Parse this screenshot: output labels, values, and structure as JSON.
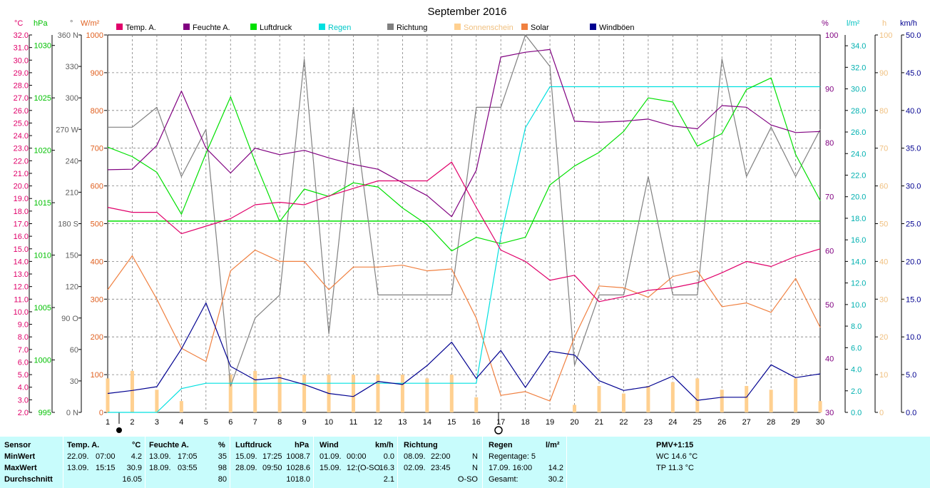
{
  "chart_data": {
    "type": "line",
    "title": "September 2016",
    "x": [
      1,
      2,
      3,
      4,
      5,
      6,
      7,
      8,
      9,
      10,
      11,
      12,
      13,
      14,
      15,
      16,
      17,
      18,
      19,
      20,
      21,
      22,
      23,
      24,
      25,
      26,
      27,
      28,
      29,
      30
    ],
    "legend": [
      {
        "name": "Temp. A.",
        "color": "#e0006a"
      },
      {
        "name": "Feuchte A.",
        "color": "#800080"
      },
      {
        "name": "Luftdruck",
        "color": "#00e000"
      },
      {
        "name": "Regen",
        "color": "#00e0e0"
      },
      {
        "name": "Richtung",
        "color": "#808080"
      },
      {
        "name": "Sonnenschein",
        "color": "#ffd090"
      },
      {
        "name": "Solar",
        "color": "#f08040"
      },
      {
        "name": "Windböen",
        "color": "#000090"
      }
    ],
    "axes": {
      "temp": {
        "unit": "°C",
        "min": 2,
        "max": 32,
        "step": 1,
        "decimals": 1,
        "color": "#e0006a"
      },
      "pressure": {
        "unit": "hPa",
        "min": 995,
        "max": 1031,
        "ticks": [
          995,
          1000,
          1005,
          1010,
          1015,
          1020,
          1025,
          1030
        ],
        "color": "#00c000"
      },
      "direction": {
        "unit": "°",
        "min": 0,
        "max": 360,
        "ticks": [
          0,
          30,
          60,
          90,
          120,
          150,
          180,
          210,
          240,
          270,
          300,
          330,
          360
        ],
        "tick_labels": [
          "0 N",
          "30",
          "60",
          "90 O",
          "120",
          "150",
          "180 S",
          "210",
          "240",
          "270 W",
          "300",
          "330",
          "360 N"
        ],
        "color": "#606060"
      },
      "solar": {
        "unit": "W/m²",
        "min": 0,
        "max": 1000,
        "step": 100,
        "color": "#e06020"
      },
      "humidity": {
        "unit": "%",
        "min": 30,
        "max": 100,
        "ticks": [
          30,
          40,
          50,
          60,
          70,
          80,
          90,
          100
        ],
        "color": "#800080"
      },
      "rain": {
        "unit": "l/m²",
        "min": 0,
        "max": 35,
        "step": 2,
        "decimals": 1,
        "color": "#00c0c0"
      },
      "sunshine": {
        "unit": "h",
        "min": 0,
        "max": 100,
        "step": 10,
        "color": "#f0c080"
      },
      "wind": {
        "unit": "km/h",
        "min": 0,
        "max": 50,
        "step": 5,
        "decimals": 1,
        "color": "#000090"
      }
    },
    "series": [
      {
        "name": "Temp. A.",
        "axis": "temp",
        "values": [
          18.3,
          17.9,
          17.9,
          16.2,
          16.8,
          17.4,
          18.5,
          18.7,
          18.5,
          19.2,
          19.8,
          20.4,
          20.4,
          20.4,
          21.9,
          18.3,
          14.9,
          14.0,
          12.5,
          12.9,
          10.8,
          11.2,
          11.7,
          11.9,
          12.3,
          13.1,
          14.0,
          13.6,
          14.4,
          15.0
        ]
      },
      {
        "name": "Feuchte A.",
        "axis": "humidity",
        "values": [
          75,
          75.1,
          79.5,
          89.6,
          79,
          74.4,
          79,
          77.8,
          78.6,
          77.2,
          76,
          75.1,
          72.6,
          70.2,
          66.3,
          74.9,
          95.9,
          96.8,
          97.3,
          84,
          83.8,
          84,
          84.4,
          83.1,
          82.6,
          86.9,
          86.6,
          83.3,
          81.9,
          82.1
        ]
      },
      {
        "name": "Luftdruck",
        "axis": "pressure",
        "values": [
          1020.3,
          1019.4,
          1017.9,
          1013.9,
          1019.7,
          1025.1,
          1018.9,
          1013.2,
          1016.3,
          1015.6,
          1016.9,
          1016.5,
          1014.5,
          1012.9,
          1010.4,
          1011.7,
          1011.1,
          1011.7,
          1016.7,
          1018.5,
          1019.8,
          1021.8,
          1025.0,
          1024.6,
          1020.4,
          1021.6,
          1025.8,
          1026.9,
          1019.6,
          1015.2
        ]
      },
      {
        "name": "Regen",
        "axis": "rain",
        "values": [
          0,
          0,
          0,
          2.2,
          2.7,
          2.7,
          2.7,
          2.7,
          2.7,
          2.7,
          2.7,
          2.7,
          2.7,
          2.7,
          2.7,
          2.7,
          16.3,
          26.4,
          30.2,
          30.2,
          30.2,
          30.2,
          30.2,
          30.2,
          30.2,
          30.2,
          30.2,
          30.2,
          30.2,
          30.2
        ]
      },
      {
        "name": "Richtung",
        "axis": "direction",
        "values": [
          272,
          272,
          291,
          225,
          270,
          25,
          90,
          112,
          337,
          75,
          291,
          112,
          112,
          112,
          112,
          291,
          291,
          360,
          330,
          45,
          112,
          112,
          225,
          112,
          112,
          337,
          225,
          272,
          225,
          270
        ]
      },
      {
        "name": "Solar",
        "axis": "solar",
        "values": [
          325,
          415,
          300,
          170,
          135,
          375,
          430,
          400,
          400,
          325,
          385,
          385,
          390,
          375,
          380,
          250,
          45,
          55,
          30,
          200,
          335,
          330,
          305,
          360,
          375,
          280,
          290,
          265,
          355,
          225
        ]
      },
      {
        "name": "Windböen",
        "axis": "wind",
        "values": [
          2.5,
          2.9,
          3.4,
          8.4,
          14.5,
          6.1,
          4.3,
          4.6,
          3.7,
          2.5,
          2.1,
          4.1,
          3.7,
          6.2,
          9.3,
          4.5,
          8.2,
          3.3,
          8.1,
          7.6,
          4.2,
          2.9,
          3.4,
          4.8,
          1.6,
          2.0,
          2.0,
          6.3,
          4.6,
          5.1
        ]
      },
      {
        "name": "Sonnenschein",
        "axis": "sunshine",
        "type": "bar",
        "values": [
          9,
          11,
          6,
          3,
          0,
          10,
          11,
          10,
          10,
          10,
          10,
          10,
          10,
          9,
          10,
          4,
          0,
          0,
          0,
          2,
          7,
          5,
          7,
          8,
          9,
          6,
          7,
          6,
          9,
          3
        ]
      }
    ],
    "reference_lines": [
      {
        "axis": "pressure",
        "value": 1013.25,
        "color": "#00e000"
      }
    ]
  },
  "stats": {
    "sensor": {
      "header": "Sensor",
      "rows": [
        "MinWert",
        "MaxWert",
        "Durchschnitt"
      ]
    },
    "temp": {
      "header": "Temp. A.",
      "unit": "°C",
      "rows": [
        [
          "22.09.",
          "07:00",
          "4.2"
        ],
        [
          "13.09.",
          "15:15",
          "30.9"
        ],
        [
          "",
          "",
          "16.05"
        ]
      ]
    },
    "feuchte": {
      "header": "Feuchte A.",
      "unit": "%",
      "rows": [
        [
          "13.09.",
          "17:05",
          "35"
        ],
        [
          "18.09.",
          "03:55",
          "98"
        ],
        [
          "",
          "",
          "80"
        ]
      ]
    },
    "luftdruck": {
      "header": "Luftdruck",
      "unit": "hPa",
      "rows": [
        [
          "15.09.",
          "17:25",
          "1008.7"
        ],
        [
          "28.09.",
          "09:50",
          "1028.6"
        ],
        [
          "",
          "",
          "1018.0"
        ]
      ]
    },
    "wind": {
      "header": "Wind",
      "unit": "km/h",
      "rows": [
        [
          "01.09.",
          "00:00",
          "0.0"
        ],
        [
          "15.09.",
          "12:(O-SO",
          "16.3"
        ],
        [
          "",
          "",
          "2.1"
        ]
      ]
    },
    "richtung": {
      "header": "Richtung",
      "rows": [
        [
          "08.09.",
          "22:00",
          "N"
        ],
        [
          "02.09.",
          "23:45",
          "N"
        ],
        [
          "",
          "",
          "O-SO"
        ]
      ]
    },
    "regen": {
      "header": "Regen",
      "unit": "l/m²",
      "rows": [
        [
          "Regentage: 5",
          ""
        ],
        [
          "17.09.  16:00",
          "14.2"
        ],
        [
          "Gesamt:",
          "30.2"
        ]
      ]
    },
    "pmv": {
      "header": "PMV+1:15",
      "rows": [
        "WC 14.6 °C",
        "TP 11.3 °C"
      ]
    }
  }
}
